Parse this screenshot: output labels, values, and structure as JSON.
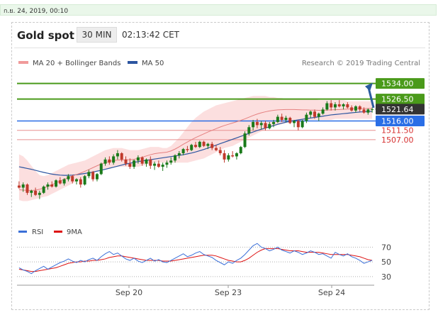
{
  "top_bar": {
    "date_text": "ก.ย. 24, 2019, 00:10"
  },
  "header": {
    "title": "Gold spot",
    "timeframe": "30 MIN",
    "time": "02:13:42 CET"
  },
  "legend": {
    "ma20": "MA 20 + Bollinger Bands",
    "ma50": "MA 50",
    "copyright": "Research © 2019 Trading Central"
  },
  "colors": {
    "up_candle": "#1a7a1a",
    "down_candle": "#c0392b",
    "ma20": "#e58080",
    "bollinger_fill": "#fbd9d9",
    "ma50": "#2c55a0",
    "target_green": "#4a9a1a",
    "pivot_blue": "#2a6ee6",
    "support_red": "#d63030",
    "price_tag": "#333333",
    "arrow": "#2b5c9e"
  },
  "chart_data": [
    {
      "type": "candlestick",
      "x_ticks": [
        "Sep 20",
        "Sep 23",
        "Sep 24"
      ],
      "ylim": [
        1477,
        1540
      ],
      "legend_placement": "top-left",
      "ohlc": [
        [
          1485.0,
          1487.0,
          1483.5,
          1484.0
        ],
        [
          1484.0,
          1486.5,
          1482.0,
          1485.5
        ],
        [
          1485.5,
          1486.0,
          1480.5,
          1481.5
        ],
        [
          1481.5,
          1483.0,
          1479.5,
          1482.5
        ],
        [
          1482.5,
          1484.0,
          1480.0,
          1480.5
        ],
        [
          1480.5,
          1482.5,
          1478.5,
          1481.5
        ],
        [
          1481.5,
          1485.0,
          1481.0,
          1484.5
        ],
        [
          1484.5,
          1486.5,
          1483.0,
          1485.5
        ],
        [
          1485.5,
          1487.0,
          1484.0,
          1484.5
        ],
        [
          1484.5,
          1488.0,
          1484.0,
          1487.5
        ],
        [
          1487.5,
          1489.0,
          1485.5,
          1486.0
        ],
        [
          1486.0,
          1488.5,
          1485.0,
          1488.0
        ],
        [
          1488.0,
          1490.5,
          1487.0,
          1489.5
        ],
        [
          1489.5,
          1490.0,
          1486.0,
          1487.0
        ],
        [
          1487.0,
          1488.5,
          1485.5,
          1488.0
        ],
        [
          1488.0,
          1489.0,
          1484.0,
          1485.5
        ],
        [
          1485.5,
          1490.0,
          1485.0,
          1489.5
        ],
        [
          1489.5,
          1492.5,
          1488.5,
          1491.5
        ],
        [
          1491.5,
          1492.0,
          1487.0,
          1488.0
        ],
        [
          1488.0,
          1491.0,
          1487.0,
          1490.5
        ],
        [
          1490.5,
          1496.0,
          1490.0,
          1495.5
        ],
        [
          1495.5,
          1498.5,
          1494.5,
          1497.5
        ],
        [
          1497.5,
          1499.0,
          1495.0,
          1496.0
        ],
        [
          1496.0,
          1500.0,
          1495.0,
          1499.0
        ],
        [
          1499.0,
          1502.0,
          1497.5,
          1500.5
        ],
        [
          1500.5,
          1501.0,
          1496.5,
          1497.5
        ],
        [
          1497.5,
          1499.0,
          1494.5,
          1495.5
        ],
        [
          1495.5,
          1498.0,
          1493.0,
          1494.0
        ],
        [
          1494.0,
          1497.5,
          1493.0,
          1497.0
        ],
        [
          1497.0,
          1499.5,
          1495.5,
          1498.5
        ],
        [
          1498.5,
          1499.0,
          1494.5,
          1495.5
        ],
        [
          1495.5,
          1498.0,
          1494.0,
          1497.5
        ],
        [
          1497.5,
          1499.0,
          1493.0,
          1494.5
        ],
        [
          1494.5,
          1496.5,
          1492.5,
          1495.5
        ],
        [
          1495.5,
          1497.0,
          1493.5,
          1494.0
        ],
        [
          1494.0,
          1496.0,
          1492.0,
          1495.0
        ],
        [
          1495.0,
          1497.0,
          1493.5,
          1496.0
        ],
        [
          1496.0,
          1498.5,
          1495.0,
          1497.0
        ],
        [
          1497.0,
          1500.0,
          1496.0,
          1499.5
        ],
        [
          1499.5,
          1501.5,
          1498.0,
          1500.5
        ],
        [
          1500.5,
          1503.0,
          1499.5,
          1502.5
        ],
        [
          1502.5,
          1504.0,
          1501.0,
          1502.0
        ],
        [
          1502.0,
          1505.0,
          1501.5,
          1504.5
        ],
        [
          1504.5,
          1506.0,
          1503.0,
          1503.5
        ],
        [
          1503.5,
          1506.5,
          1503.0,
          1506.0
        ],
        [
          1506.0,
          1506.5,
          1503.5,
          1504.0
        ],
        [
          1504.0,
          1505.5,
          1502.5,
          1505.0
        ],
        [
          1505.0,
          1506.0,
          1502.0,
          1503.0
        ],
        [
          1503.0,
          1504.5,
          1501.5,
          1502.0
        ],
        [
          1502.0,
          1503.5,
          1499.5,
          1500.5
        ],
        [
          1500.5,
          1502.0,
          1496.0,
          1497.5
        ],
        [
          1497.5,
          1500.5,
          1496.5,
          1499.5
        ],
        [
          1499.5,
          1501.5,
          1498.5,
          1499.0
        ],
        [
          1499.0,
          1501.0,
          1497.5,
          1500.5
        ],
        [
          1500.5,
          1504.0,
          1500.0,
          1503.5
        ],
        [
          1503.5,
          1511.0,
          1503.0,
          1510.0
        ],
        [
          1510.0,
          1514.0,
          1509.0,
          1513.0
        ],
        [
          1513.0,
          1516.5,
          1511.5,
          1515.5
        ],
        [
          1515.5,
          1517.0,
          1512.5,
          1514.0
        ],
        [
          1514.0,
          1516.0,
          1512.0,
          1515.0
        ],
        [
          1515.0,
          1516.0,
          1511.5,
          1512.5
        ],
        [
          1512.5,
          1515.5,
          1512.0,
          1514.5
        ],
        [
          1514.5,
          1516.5,
          1513.0,
          1515.5
        ],
        [
          1515.5,
          1519.0,
          1515.0,
          1518.0
        ],
        [
          1518.0,
          1519.5,
          1515.5,
          1516.5
        ],
        [
          1516.5,
          1518.5,
          1515.5,
          1517.5
        ],
        [
          1517.5,
          1518.0,
          1514.5,
          1515.0
        ],
        [
          1515.0,
          1516.5,
          1513.0,
          1516.0
        ],
        [
          1516.0,
          1516.5,
          1511.5,
          1513.0
        ],
        [
          1513.0,
          1516.5,
          1512.5,
          1516.0
        ],
        [
          1516.0,
          1520.0,
          1515.0,
          1519.0
        ],
        [
          1519.0,
          1521.0,
          1517.5,
          1520.5
        ],
        [
          1520.5,
          1521.5,
          1517.0,
          1518.0
        ],
        [
          1518.0,
          1520.0,
          1516.0,
          1519.5
        ],
        [
          1519.5,
          1522.5,
          1519.0,
          1521.5
        ],
        [
          1521.5,
          1525.5,
          1521.0,
          1524.5
        ],
        [
          1524.5,
          1526.0,
          1521.0,
          1522.5
        ],
        [
          1522.5,
          1525.0,
          1521.0,
          1524.0
        ],
        [
          1524.0,
          1526.0,
          1522.5,
          1523.0
        ],
        [
          1523.0,
          1524.5,
          1521.5,
          1524.0
        ],
        [
          1524.0,
          1525.0,
          1522.0,
          1522.5
        ],
        [
          1522.5,
          1523.5,
          1520.5,
          1521.0
        ],
        [
          1521.0,
          1523.5,
          1520.0,
          1523.0
        ],
        [
          1523.0,
          1523.5,
          1520.5,
          1521.5
        ],
        [
          1521.5,
          1522.5,
          1519.5,
          1520.0
        ],
        [
          1520.0,
          1522.0,
          1519.0,
          1521.5
        ],
        [
          1521.5,
          1522.5,
          1520.0,
          1521.64
        ]
      ],
      "ma20": [
        1483.0,
        1482.8,
        1482.7,
        1482.6,
        1482.8,
        1483.2,
        1483.8,
        1484.5,
        1485.4,
        1486.3,
        1487.2,
        1488.0,
        1488.8,
        1489.6,
        1490.3,
        1491.0,
        1491.8,
        1492.7,
        1493.6,
        1494.5,
        1495.3,
        1496.0,
        1496.6,
        1497.0,
        1497.2,
        1497.3,
        1497.3,
        1497.4,
        1497.6,
        1498.0,
        1498.6,
        1499.2,
        1499.8,
        1500.3,
        1500.6,
        1500.8,
        1501.0,
        1501.6,
        1502.5,
        1503.6,
        1504.8,
        1505.9,
        1507.0,
        1508.0,
        1508.9,
        1509.8,
        1510.7,
        1511.5,
        1512.3,
        1513.1,
        1513.8,
        1514.4,
        1515.0,
        1515.6,
        1516.3,
        1517.0,
        1517.8,
        1518.6,
        1519.3,
        1519.9,
        1520.4,
        1520.8,
        1521.1,
        1521.3,
        1521.4,
        1521.5,
        1521.5,
        1521.5,
        1521.4,
        1521.3,
        1521.3,
        1521.2,
        1521.2,
        1521.1,
        1521.1,
        1521.2,
        1521.3,
        1521.4,
        1521.5,
        1521.6,
        1521.7,
        1521.8,
        1521.9,
        1522.0,
        1522.0,
        1522.0,
        1522.0
      ],
      "bollinger_upper": [
        1500.0,
        1499.0,
        1497.0,
        1494.5,
        1492.0,
        1490.0,
        1489.5,
        1490.0,
        1491.0,
        1492.0,
        1493.0,
        1494.0,
        1495.0,
        1495.5,
        1496.0,
        1496.5,
        1497.0,
        1498.0,
        1499.0,
        1500.0,
        1501.0,
        1502.0,
        1502.5,
        1503.0,
        1503.0,
        1503.0,
        1502.5,
        1502.0,
        1502.0,
        1502.0,
        1502.5,
        1503.0,
        1503.5,
        1503.5,
        1503.5,
        1503.0,
        1503.0,
        1504.0,
        1506.0,
        1508.0,
        1510.5,
        1513.0,
        1515.5,
        1517.5,
        1519.0,
        1520.5,
        1521.5,
        1522.5,
        1523.5,
        1524.0,
        1524.5,
        1525.0,
        1525.5,
        1526.0,
        1526.5,
        1527.0,
        1527.5,
        1528.0,
        1528.0,
        1528.0,
        1528.0,
        1527.5,
        1527.5,
        1527.0,
        1527.0,
        1526.5,
        1526.5,
        1526.5,
        1526.5,
        1526.5,
        1526.5,
        1526.5,
        1526.5,
        1526.0,
        1526.0,
        1526.0,
        1526.0,
        1526.0,
        1526.0,
        1526.0,
        1525.5,
        1525.5,
        1525.5,
        1525.5,
        1525.5,
        1525.5,
        1525.5
      ],
      "bollinger_lower": [
        1478.0,
        1477.5,
        1477.5,
        1478.0,
        1478.5,
        1479.0,
        1479.5,
        1480.0,
        1481.0,
        1482.0,
        1483.0,
        1484.0,
        1485.0,
        1486.0,
        1487.0,
        1488.0,
        1489.0,
        1490.0,
        1491.0,
        1492.0,
        1492.5,
        1493.0,
        1493.5,
        1493.8,
        1494.0,
        1494.0,
        1494.0,
        1494.0,
        1494.0,
        1494.0,
        1494.5,
        1495.0,
        1495.5,
        1496.0,
        1496.0,
        1496.0,
        1496.0,
        1496.0,
        1496.0,
        1496.0,
        1496.0,
        1496.0,
        1496.5,
        1497.0,
        1497.5,
        1498.0,
        1499.0,
        1500.0,
        1501.0,
        1502.0,
        1503.0,
        1503.5,
        1504.0,
        1505.0,
        1506.0,
        1507.0,
        1508.0,
        1509.0,
        1510.0,
        1511.0,
        1512.0,
        1513.0,
        1513.5,
        1514.0,
        1514.5,
        1515.0,
        1515.5,
        1516.0,
        1516.0,
        1516.0,
        1516.5,
        1516.5,
        1516.5,
        1516.5,
        1516.5,
        1516.5,
        1516.5,
        1517.0,
        1517.0,
        1517.0,
        1517.0,
        1517.0,
        1517.0,
        1517.0,
        1517.0,
        1517.0,
        1517.0
      ],
      "ma50": [
        1494.0,
        1493.6,
        1493.2,
        1492.8,
        1492.3,
        1491.8,
        1491.3,
        1490.9,
        1490.5,
        1490.2,
        1490.0,
        1489.9,
        1489.9,
        1490.0,
        1490.2,
        1490.5,
        1490.8,
        1491.1,
        1491.5,
        1491.9,
        1492.3,
        1492.8,
        1493.3,
        1493.8,
        1494.3,
        1494.8,
        1495.3,
        1495.7,
        1496.1,
        1496.5,
        1496.8,
        1497.1,
        1497.4,
        1497.7,
        1498.0,
        1498.3,
        1498.6,
        1498.9,
        1499.2,
        1499.5,
        1499.8,
        1500.2,
        1500.6,
        1501.1,
        1501.7,
        1502.3,
        1503.0,
        1503.7,
        1504.4,
        1505.1,
        1505.8,
        1506.5,
        1507.2,
        1507.9,
        1508.6,
        1509.3,
        1510.0,
        1510.7,
        1511.4,
        1512.0,
        1512.6,
        1513.2,
        1513.8,
        1514.4,
        1514.9,
        1515.4,
        1515.8,
        1516.2,
        1516.5,
        1516.8,
        1517.1,
        1517.4,
        1517.7,
        1518.0,
        1518.3,
        1518.6,
        1518.9,
        1519.1,
        1519.3,
        1519.5,
        1519.7,
        1519.9,
        1520.1,
        1520.3,
        1520.4,
        1520.5,
        1520.6
      ],
      "levels": [
        {
          "price": "1534.00",
          "value": 1534.0,
          "kind": "target"
        },
        {
          "price": "1526.50",
          "value": 1526.5,
          "kind": "target"
        },
        {
          "price": "1521.64",
          "value": 1521.64,
          "kind": "last"
        },
        {
          "price": "1516.00",
          "value": 1516.0,
          "kind": "pivot"
        },
        {
          "price": "1511.50",
          "value": 1511.5,
          "kind": "support"
        },
        {
          "price": "1507.00",
          "value": 1507.0,
          "kind": "support"
        }
      ]
    },
    {
      "type": "line",
      "legend": [
        "RSI",
        "9MA"
      ],
      "y_ticks": [
        "70",
        "50",
        "30"
      ],
      "ylim": [
        25,
        80
      ],
      "rsi": [
        42,
        39,
        37,
        34,
        38,
        41,
        44,
        40,
        43,
        46,
        49,
        51,
        54,
        51,
        49,
        52,
        50,
        53,
        55,
        52,
        57,
        61,
        64,
        60,
        62,
        58,
        54,
        52,
        55,
        51,
        49,
        52,
        55,
        51,
        53,
        50,
        49,
        52,
        55,
        58,
        61,
        57,
        59,
        62,
        64,
        60,
        58,
        56,
        52,
        49,
        46,
        50,
        48,
        52,
        55,
        60,
        66,
        72,
        75,
        70,
        68,
        65,
        67,
        70,
        66,
        64,
        62,
        65,
        63,
        60,
        62,
        65,
        63,
        60,
        61,
        58,
        55,
        63,
        60,
        58,
        61,
        57,
        55,
        52,
        48,
        50,
        52
      ],
      "rsi_ma": [
        40,
        39,
        38,
        37,
        37,
        38,
        39,
        40,
        41,
        42,
        44,
        46,
        48,
        49,
        50,
        50,
        51,
        51,
        52,
        52,
        53,
        54,
        56,
        57,
        58,
        58,
        57,
        56,
        55,
        54,
        53,
        52,
        52,
        52,
        52,
        51,
        51,
        51,
        52,
        53,
        54,
        55,
        56,
        57,
        58,
        59,
        59,
        59,
        58,
        56,
        54,
        52,
        51,
        50,
        50,
        52,
        55,
        59,
        63,
        66,
        68,
        68,
        68,
        68,
        67,
        66,
        65,
        65,
        65,
        64,
        63,
        63,
        63,
        63,
        62,
        61,
        60,
        60,
        60,
        60,
        60,
        59,
        58,
        57,
        55,
        53,
        52
      ]
    }
  ]
}
